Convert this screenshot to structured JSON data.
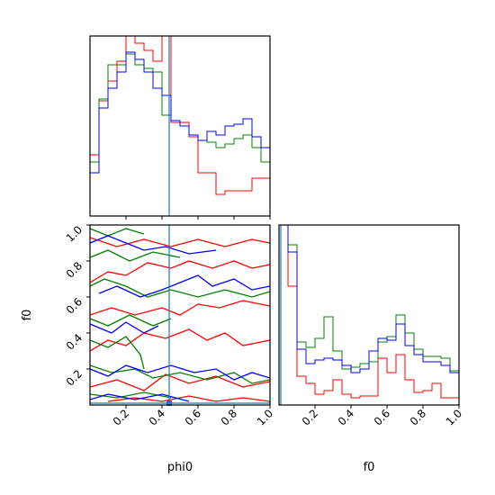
{
  "colors": {
    "red": "#ff0000",
    "green": "#008000",
    "blue": "#0000ff",
    "truth": "#1f77b4"
  },
  "chart_data": {
    "type": "corner",
    "parameters": [
      "phi0",
      "f0"
    ],
    "xlabel_phi0": "phi0",
    "xlabel_f0": "f0",
    "ylabel_f0": "f0",
    "tick_values": [
      0.2,
      0.4,
      0.6,
      0.8,
      1.0
    ],
    "tick_labels": [
      "0.2",
      "0.4",
      "0.6",
      "0.8",
      "1.0"
    ],
    "range": [
      0.0,
      1.0
    ],
    "truth": {
      "phi0": 0.44,
      "f0": 0.01
    },
    "hist_edges": [
      0.0,
      0.05,
      0.1,
      0.15,
      0.2,
      0.25,
      0.3,
      0.35,
      0.4,
      0.45,
      0.5,
      0.55,
      0.6,
      0.65,
      0.7,
      0.75,
      0.8,
      0.85,
      0.9,
      0.95,
      1.0
    ],
    "hist_phi0": {
      "ymax": 1.0,
      "series": [
        {
          "color": "red",
          "values": [
            0.34,
            0.64,
            0.75,
            0.86,
            1.04,
            0.96,
            0.92,
            0.86,
            1.04,
            0.52,
            0.52,
            0.44,
            0.24,
            0.24,
            0.12,
            0.14,
            0.14,
            0.14,
            0.21,
            0.21
          ]
        },
        {
          "color": "green",
          "values": [
            0.3,
            0.65,
            0.84,
            0.84,
            0.9,
            0.84,
            0.82,
            0.8,
            0.56,
            0.53,
            0.5,
            0.45,
            0.42,
            0.41,
            0.38,
            0.4,
            0.43,
            0.45,
            0.38,
            0.3
          ]
        },
        {
          "color": "blue",
          "values": [
            0.24,
            0.6,
            0.71,
            0.8,
            0.91,
            0.87,
            0.8,
            0.71,
            0.67,
            0.53,
            0.5,
            0.45,
            0.42,
            0.47,
            0.45,
            0.5,
            0.51,
            0.54,
            0.44,
            0.38
          ]
        }
      ]
    },
    "hist_f0": {
      "ymax": 1.0,
      "series": [
        {
          "color": "red",
          "values": [
            1.02,
            0.66,
            0.16,
            0.12,
            0.06,
            0.08,
            0.14,
            0.06,
            0.04,
            0.05,
            0.05,
            0.26,
            0.18,
            0.28,
            0.14,
            0.07,
            0.08,
            0.12,
            0.04,
            0.04
          ]
        },
        {
          "color": "green",
          "values": [
            1.02,
            0.89,
            0.35,
            0.32,
            0.37,
            0.49,
            0.3,
            0.2,
            0.21,
            0.23,
            0.24,
            0.35,
            0.38,
            0.5,
            0.4,
            0.31,
            0.27,
            0.27,
            0.26,
            0.19
          ]
        },
        {
          "color": "blue",
          "values": [
            1.02,
            0.85,
            0.31,
            0.23,
            0.25,
            0.26,
            0.25,
            0.22,
            0.18,
            0.2,
            0.3,
            0.37,
            0.36,
            0.45,
            0.33,
            0.28,
            0.24,
            0.24,
            0.22,
            0.18
          ]
        }
      ]
    },
    "contours": [
      {
        "color": "red",
        "points": [
          [
            0.0,
            0.93
          ],
          [
            0.15,
            0.88
          ],
          [
            0.3,
            0.92
          ],
          [
            0.45,
            0.88
          ],
          [
            0.6,
            0.92
          ],
          [
            0.75,
            0.88
          ],
          [
            0.9,
            0.92
          ],
          [
            1.0,
            0.9
          ]
        ]
      },
      {
        "color": "red",
        "points": [
          [
            0.0,
            0.68
          ],
          [
            0.1,
            0.74
          ],
          [
            0.2,
            0.72
          ],
          [
            0.32,
            0.79
          ],
          [
            0.45,
            0.76
          ],
          [
            0.55,
            0.8
          ],
          [
            0.68,
            0.76
          ],
          [
            0.8,
            0.8
          ],
          [
            0.9,
            0.76
          ],
          [
            1.0,
            0.78
          ]
        ]
      },
      {
        "color": "red",
        "points": [
          [
            0.0,
            0.5
          ],
          [
            0.12,
            0.54
          ],
          [
            0.25,
            0.5
          ],
          [
            0.4,
            0.54
          ],
          [
            0.5,
            0.5
          ],
          [
            0.6,
            0.56
          ],
          [
            0.72,
            0.54
          ],
          [
            0.85,
            0.58
          ],
          [
            1.0,
            0.55
          ]
        ]
      },
      {
        "color": "red",
        "points": [
          [
            0.0,
            0.3
          ],
          [
            0.1,
            0.36
          ],
          [
            0.2,
            0.33
          ],
          [
            0.3,
            0.4
          ],
          [
            0.42,
            0.37
          ],
          [
            0.55,
            0.42
          ],
          [
            0.65,
            0.36
          ],
          [
            0.75,
            0.4
          ],
          [
            0.85,
            0.33
          ],
          [
            1.0,
            0.36
          ]
        ]
      },
      {
        "color": "red",
        "points": [
          [
            0.0,
            0.1
          ],
          [
            0.15,
            0.14
          ],
          [
            0.3,
            0.08
          ],
          [
            0.42,
            0.17
          ],
          [
            0.55,
            0.12
          ],
          [
            0.7,
            0.16
          ],
          [
            0.85,
            0.1
          ],
          [
            1.0,
            0.13
          ]
        ]
      },
      {
        "color": "red",
        "points": [
          [
            0.1,
            0.02
          ],
          [
            0.25,
            0.04
          ],
          [
            0.4,
            0.02
          ],
          [
            0.55,
            0.05
          ],
          [
            0.7,
            0.02
          ],
          [
            0.85,
            0.04
          ],
          [
            1.0,
            0.02
          ]
        ]
      },
      {
        "color": "green",
        "points": [
          [
            0.0,
            0.98
          ],
          [
            0.1,
            0.94
          ],
          [
            0.2,
            0.98
          ],
          [
            0.3,
            0.95
          ]
        ]
      },
      {
        "color": "green",
        "points": [
          [
            0.0,
            0.82
          ],
          [
            0.1,
            0.86
          ],
          [
            0.22,
            0.8
          ],
          [
            0.35,
            0.85
          ],
          [
            0.5,
            0.82
          ]
        ]
      },
      {
        "color": "green",
        "points": [
          [
            0.0,
            0.66
          ],
          [
            0.08,
            0.7
          ],
          [
            0.2,
            0.66
          ],
          [
            0.32,
            0.6
          ],
          [
            0.45,
            0.64
          ],
          [
            0.6,
            0.6
          ],
          [
            0.75,
            0.64
          ],
          [
            0.9,
            0.6
          ],
          [
            1.0,
            0.63
          ]
        ]
      },
      {
        "color": "green",
        "points": [
          [
            0.0,
            0.48
          ],
          [
            0.1,
            0.44
          ],
          [
            0.22,
            0.5
          ],
          [
            0.35,
            0.44
          ],
          [
            0.45,
            0.48
          ]
        ]
      },
      {
        "color": "green",
        "points": [
          [
            0.0,
            0.36
          ],
          [
            0.1,
            0.32
          ],
          [
            0.2,
            0.38
          ],
          [
            0.28,
            0.28
          ],
          [
            0.3,
            0.2
          ]
        ]
      },
      {
        "color": "green",
        "points": [
          [
            0.0,
            0.22
          ],
          [
            0.12,
            0.18
          ],
          [
            0.25,
            0.2
          ],
          [
            0.35,
            0.15
          ],
          [
            0.5,
            0.18
          ],
          [
            0.65,
            0.14
          ],
          [
            0.8,
            0.18
          ],
          [
            0.9,
            0.12
          ],
          [
            1.0,
            0.14
          ]
        ]
      },
      {
        "color": "green",
        "points": [
          [
            0.0,
            0.06
          ],
          [
            0.15,
            0.04
          ],
          [
            0.3,
            0.07
          ],
          [
            0.45,
            0.04
          ]
        ]
      },
      {
        "color": "blue",
        "points": [
          [
            0.0,
            0.9
          ],
          [
            0.1,
            0.94
          ],
          [
            0.2,
            0.9
          ],
          [
            0.3,
            0.86
          ],
          [
            0.42,
            0.88
          ],
          [
            0.55,
            0.84
          ],
          [
            0.7,
            0.86
          ]
        ]
      },
      {
        "color": "blue",
        "points": [
          [
            0.05,
            0.62
          ],
          [
            0.15,
            0.66
          ],
          [
            0.28,
            0.6
          ],
          [
            0.4,
            0.64
          ],
          [
            0.5,
            0.68
          ],
          [
            0.6,
            0.72
          ],
          [
            0.68,
            0.66
          ],
          [
            0.8,
            0.7
          ],
          [
            0.9,
            0.64
          ],
          [
            1.0,
            0.66
          ]
        ]
      },
      {
        "color": "blue",
        "points": [
          [
            0.0,
            0.45
          ],
          [
            0.12,
            0.4
          ],
          [
            0.2,
            0.46
          ],
          [
            0.3,
            0.4
          ],
          [
            0.38,
            0.44
          ]
        ]
      },
      {
        "color": "blue",
        "points": [
          [
            0.0,
            0.2
          ],
          [
            0.1,
            0.16
          ],
          [
            0.2,
            0.22
          ],
          [
            0.32,
            0.18
          ],
          [
            0.45,
            0.22
          ],
          [
            0.58,
            0.18
          ],
          [
            0.7,
            0.2
          ],
          [
            0.8,
            0.14
          ],
          [
            0.9,
            0.18
          ],
          [
            1.0,
            0.15
          ]
        ]
      },
      {
        "color": "blue",
        "points": [
          [
            0.0,
            0.03
          ],
          [
            0.1,
            0.06
          ],
          [
            0.25,
            0.03
          ],
          [
            0.4,
            0.06
          ],
          [
            0.55,
            0.02
          ]
        ]
      }
    ]
  }
}
